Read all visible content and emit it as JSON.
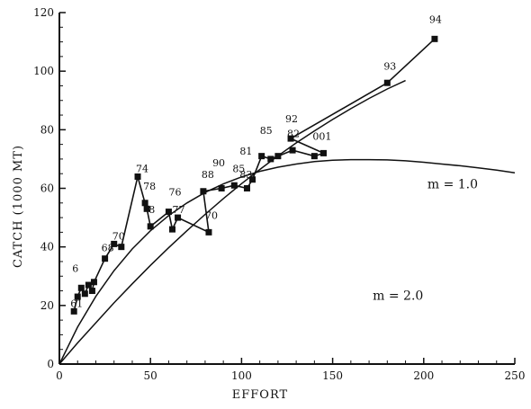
{
  "chart_data": {
    "type": "line",
    "title": "",
    "xlabel": "EFFORT",
    "ylabel": "CATCH (1000 MT)",
    "xlim": [
      0,
      250
    ],
    "ylim": [
      0,
      120
    ],
    "x_ticks": [
      "0",
      "50",
      "100",
      "150",
      "200",
      "250"
    ],
    "y_ticks": [
      "0",
      "20",
      "40",
      "60",
      "80",
      "100",
      "120"
    ],
    "grid": false,
    "legend": "none",
    "colors": {
      "line": "#111111",
      "marker": "#111111"
    },
    "series": [
      {
        "style": "line-with-square-markers",
        "points": [
          {
            "label": "61",
            "x": 8,
            "y": 18
          },
          {
            "label": "",
            "x": 10,
            "y": 23
          },
          {
            "label": "",
            "x": 12,
            "y": 26
          },
          {
            "label": "",
            "x": 14,
            "y": 24
          },
          {
            "label": "",
            "x": 16,
            "y": 27
          },
          {
            "label": "",
            "x": 18,
            "y": 25
          },
          {
            "label": "",
            "x": 19,
            "y": 28
          },
          {
            "label": "68",
            "x": 25,
            "y": 36
          },
          {
            "label": "70",
            "x": 30,
            "y": 41
          },
          {
            "label": "",
            "x": 34,
            "y": 40
          },
          {
            "label": "74",
            "x": 43,
            "y": 64
          },
          {
            "label": "",
            "x": 47,
            "y": 55
          },
          {
            "label": "",
            "x": 48,
            "y": 53
          },
          {
            "label": "",
            "x": 50,
            "y": 47
          },
          {
            "label": "",
            "x": 60,
            "y": 52
          },
          {
            "label": "",
            "x": 62,
            "y": 46
          },
          {
            "label": "",
            "x": 65,
            "y": 50
          },
          {
            "label": "70",
            "x": 82,
            "y": 45
          },
          {
            "label": "88",
            "x": 79,
            "y": 59
          },
          {
            "label": "",
            "x": 89,
            "y": 60
          },
          {
            "label": "",
            "x": 96,
            "y": 61
          },
          {
            "label": "",
            "x": 103,
            "y": 60
          },
          {
            "label": "",
            "x": 106,
            "y": 63
          },
          {
            "label": "",
            "x": 111,
            "y": 71
          },
          {
            "label": "",
            "x": 116,
            "y": 70
          },
          {
            "label": "",
            "x": 120,
            "y": 71
          },
          {
            "label": "",
            "x": 128,
            "y": 73
          },
          {
            "label": "",
            "x": 140,
            "y": 71
          },
          {
            "label": "",
            "x": 145,
            "y": 72
          },
          {
            "label": "",
            "x": 127,
            "y": 77
          },
          {
            "label": "93",
            "x": 180,
            "y": 96
          },
          {
            "label": "",
            "x": 206,
            "y": 111
          }
        ]
      },
      {
        "name": "m = 1.0",
        "style": "curve",
        "x": [
          0,
          10,
          20,
          30,
          40,
          50,
          60,
          70,
          80,
          90,
          100,
          110,
          120,
          130,
          140,
          150,
          160,
          170,
          180,
          190,
          200,
          210,
          220,
          230,
          240,
          250
        ],
        "y": [
          0,
          12.6,
          23.1,
          31.9,
          39.3,
          45.5,
          50.7,
          55.0,
          58.6,
          61.5,
          63.9,
          65.8,
          67.2,
          68.3,
          69.1,
          69.6,
          69.8,
          69.8,
          69.7,
          69.4,
          68.9,
          68.3,
          67.7,
          67.0,
          66.2,
          65.3
        ]
      },
      {
        "name": "m = 2.0",
        "style": "curve",
        "x": [
          0,
          10,
          20,
          30,
          40,
          50,
          60,
          70,
          80,
          90,
          100,
          110,
          120,
          130,
          140,
          150,
          160,
          170,
          180,
          190
        ],
        "y": [
          0,
          7.2,
          14.1,
          20.9,
          27.4,
          33.7,
          39.7,
          45.5,
          51.1,
          56.5,
          61.6,
          66.4,
          71.1,
          75.5,
          79.6,
          83.5,
          87.2,
          90.7,
          93.9,
          96.8
        ]
      }
    ],
    "point_labels_extra": [
      {
        "label": "61",
        "x": 8,
        "y": 18
      },
      {
        "label": "6",
        "x": 9,
        "y": 30
      },
      {
        "label": "68",
        "x": 25,
        "y": 37
      },
      {
        "label": "70",
        "x": 31,
        "y": 41
      },
      {
        "label": "74",
        "x": 44,
        "y": 64
      },
      {
        "label": "78",
        "x": 48,
        "y": 58
      },
      {
        "label": "76",
        "x": 62,
        "y": 56
      },
      {
        "label": "77",
        "x": 64,
        "y": 50
      },
      {
        "label": "8",
        "x": 51,
        "y": 50
      },
      {
        "label": "70",
        "x": 82,
        "y": 48
      },
      {
        "label": "88",
        "x": 80,
        "y": 62
      },
      {
        "label": "90",
        "x": 86,
        "y": 66
      },
      {
        "label": "85",
        "x": 97,
        "y": 64
      },
      {
        "label": "81",
        "x": 101,
        "y": 70
      },
      {
        "label": "83",
        "x": 101,
        "y": 62
      },
      {
        "label": "85",
        "x": 112,
        "y": 77
      },
      {
        "label": "92",
        "x": 126,
        "y": 81
      },
      {
        "label": "82",
        "x": 127,
        "y": 76
      },
      {
        "label": "001",
        "x": 141,
        "y": 75
      },
      {
        "label": "93",
        "x": 180,
        "y": 99
      },
      {
        "label": "94",
        "x": 205,
        "y": 115
      }
    ],
    "curve_labels": [
      {
        "label": "m = 1.0",
        "x": 202,
        "y": 60
      },
      {
        "label": "m = 2.0",
        "x": 172,
        "y": 22
      }
    ]
  }
}
